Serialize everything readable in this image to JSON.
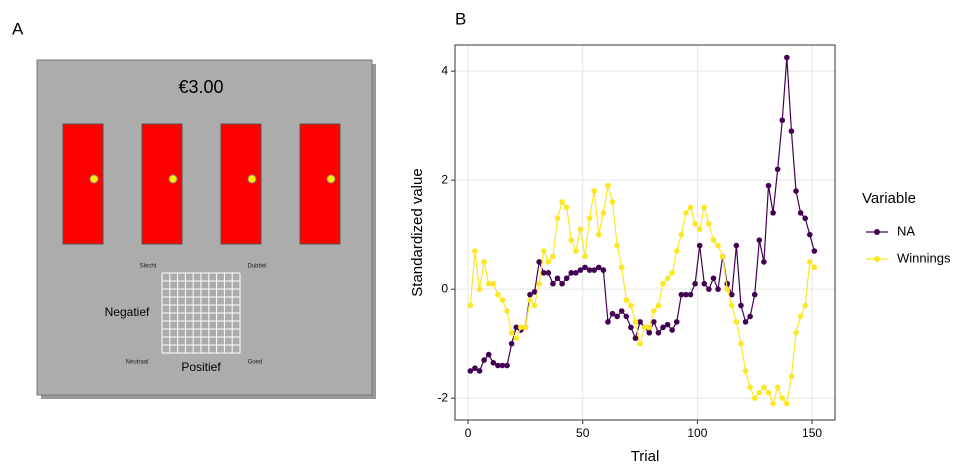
{
  "panel_a": {
    "label": "A",
    "amount": "€3.00",
    "top_left": "Slecht",
    "top_right": "Dubbel",
    "left": "Negatief",
    "bottom_left": "Neutraal",
    "bottom": "Positief",
    "bottom_right": "Goed"
  },
  "chart_data": {
    "type": "line",
    "title": "B",
    "x_label": "Trial",
    "y_label": "Standardized value",
    "legend_title": "Variable",
    "x": [
      1,
      3,
      5,
      7,
      9,
      11,
      13,
      15,
      17,
      19,
      21,
      23,
      25,
      27,
      29,
      31,
      33,
      35,
      37,
      39,
      41,
      43,
      45,
      47,
      49,
      51,
      53,
      55,
      57,
      59,
      61,
      63,
      65,
      67,
      69,
      71,
      73,
      75,
      77,
      79,
      81,
      83,
      85,
      87,
      89,
      91,
      93,
      95,
      97,
      99,
      101,
      103,
      105,
      107,
      109,
      111,
      113,
      115,
      117,
      119,
      121,
      123,
      125,
      127,
      129,
      131,
      133,
      135,
      137,
      139,
      141,
      143,
      145,
      147,
      149,
      151
    ],
    "series": [
      {
        "name": "NA",
        "color": "#440154",
        "values": [
          -1.5,
          -1.45,
          -1.5,
          -1.3,
          -1.2,
          -1.35,
          -1.4,
          -1.4,
          -1.4,
          -1.0,
          -0.7,
          -0.75,
          -0.7,
          -0.1,
          -0.05,
          0.5,
          0.3,
          0.3,
          0.1,
          0.2,
          0.1,
          0.2,
          0.3,
          0.3,
          0.35,
          0.4,
          0.35,
          0.35,
          0.4,
          0.35,
          -0.6,
          -0.45,
          -0.5,
          -0.4,
          -0.5,
          -0.7,
          -0.9,
          -0.6,
          -0.7,
          -0.8,
          -0.6,
          -0.8,
          -0.7,
          -0.65,
          -0.75,
          -0.6,
          -0.1,
          -0.1,
          -0.1,
          0.1,
          0.8,
          0.1,
          0.0,
          0.2,
          0.0,
          0.6,
          0.1,
          -0.1,
          0.8,
          -0.3,
          -0.6,
          -0.5,
          -0.1,
          0.9,
          0.5,
          1.9,
          1.4,
          2.2,
          3.1,
          4.25,
          2.9,
          1.8,
          1.4,
          1.3,
          1.0,
          0.7
        ]
      },
      {
        "name": "Winnings",
        "color": "#fde725",
        "values": [
          -0.3,
          0.7,
          0.0,
          0.5,
          0.1,
          0.1,
          -0.1,
          -0.2,
          -0.4,
          -0.8,
          -0.9,
          -0.7,
          -0.7,
          -0.2,
          -0.3,
          0.1,
          0.7,
          0.5,
          0.6,
          1.3,
          1.6,
          1.5,
          0.9,
          0.7,
          1.1,
          0.6,
          1.3,
          1.8,
          1.0,
          1.4,
          1.9,
          1.6,
          0.8,
          0.4,
          -0.2,
          -0.3,
          -0.6,
          -1.0,
          -0.7,
          -0.7,
          -0.4,
          -0.3,
          0.1,
          0.2,
          0.3,
          0.7,
          1.0,
          1.4,
          1.5,
          1.2,
          1.1,
          1.5,
          1.2,
          0.9,
          0.8,
          0.6,
          0.0,
          -0.3,
          -0.6,
          -1.0,
          -1.5,
          -1.8,
          -2.0,
          -1.9,
          -1.8,
          -1.9,
          -2.1,
          -1.8,
          -2.0,
          -2.1,
          -1.6,
          -0.8,
          -0.5,
          -0.3,
          0.5,
          0.4
        ]
      }
    ],
    "xlim": [
      -5.7,
      160
    ],
    "ylim": [
      -2.4,
      4.48
    ],
    "xticks": [
      0,
      50,
      100,
      150
    ],
    "yticks": [
      -2,
      0,
      2,
      4
    ],
    "grid": true
  }
}
